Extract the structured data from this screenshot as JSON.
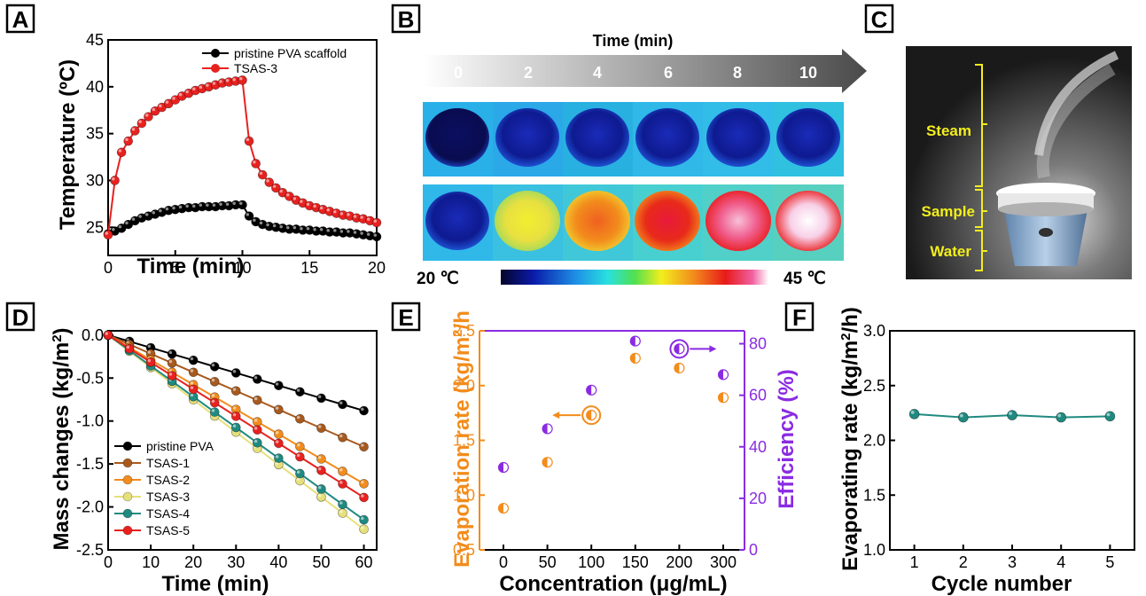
{
  "chart_data": [
    {
      "panel": "A",
      "type": "line",
      "xlabel": "Time (min)",
      "ylabel": "Temperature (ºC)",
      "xlim": [
        0,
        20
      ],
      "ylim": [
        22,
        45
      ],
      "xticks": [
        0,
        5,
        10,
        15,
        20
      ],
      "yticks": [
        25,
        30,
        35,
        40,
        45
      ],
      "legend": "top-right",
      "series": [
        {
          "name": "pristine PVA scaffold",
          "color": "#000000",
          "x": [
            0,
            0.5,
            1,
            1.5,
            2,
            2.5,
            3,
            3.5,
            4,
            4.5,
            5,
            5.5,
            6,
            6.5,
            7,
            7.5,
            8,
            8.5,
            9,
            9.5,
            10,
            10.5,
            11,
            11.5,
            12,
            12.5,
            13,
            13.5,
            14,
            14.5,
            15,
            15.5,
            16,
            16.5,
            17,
            17.5,
            18,
            18.5,
            19,
            19.5,
            20
          ],
          "y": [
            24.3,
            24.6,
            24.9,
            25.3,
            25.7,
            26,
            26.2,
            26.4,
            26.6,
            26.8,
            26.9,
            27,
            27.1,
            27.1,
            27.2,
            27.2,
            27.2,
            27.3,
            27.3,
            27.4,
            27.4,
            26.2,
            25.6,
            25.3,
            25.1,
            25,
            24.9,
            24.8,
            24.8,
            24.7,
            24.7,
            24.6,
            24.6,
            24.5,
            24.5,
            24.4,
            24.4,
            24.3,
            24.2,
            24.1,
            24
          ]
        },
        {
          "name": "TSAS-3",
          "color": "#e8211f",
          "x": [
            0,
            0.5,
            1,
            1.5,
            2,
            2.5,
            3,
            3.5,
            4,
            4.5,
            5,
            5.5,
            6,
            6.5,
            7,
            7.5,
            8,
            8.5,
            9,
            9.5,
            10,
            10.5,
            11,
            11.5,
            12,
            12.5,
            13,
            13.5,
            14,
            14.5,
            15,
            15.5,
            16,
            16.5,
            17,
            17.5,
            18,
            18.5,
            19,
            19.5,
            20
          ],
          "y": [
            24.2,
            30,
            33,
            34.2,
            35.3,
            36.1,
            36.8,
            37.4,
            37.8,
            38.2,
            38.6,
            39,
            39.3,
            39.6,
            39.8,
            40,
            40.2,
            40.4,
            40.5,
            40.6,
            40.7,
            34.2,
            31.8,
            30.6,
            29.8,
            29.2,
            28.7,
            28.3,
            27.9,
            27.6,
            27.3,
            27.1,
            26.9,
            26.7,
            26.5,
            26.3,
            26.2,
            26,
            25.9,
            25.7,
            25.5
          ]
        }
      ]
    },
    {
      "panel": "D",
      "type": "line",
      "xlabel": "Time (min)",
      "ylabel": "Mass changes (kg/m²)",
      "xlim": [
        0,
        63
      ],
      "ylim": [
        -2.5,
        0.05
      ],
      "xticks": [
        0,
        10,
        20,
        30,
        40,
        50,
        60
      ],
      "yticks": [
        0.0,
        -0.5,
        -1.0,
        -1.5,
        -2.0,
        -2.5
      ],
      "legend": "bottom-left",
      "x": [
        0,
        5,
        10,
        15,
        20,
        25,
        30,
        35,
        40,
        45,
        50,
        55,
        60
      ],
      "series": [
        {
          "name": "pristine PVA",
          "color": "#000000",
          "slope": -0.01467
        },
        {
          "name": "TSAS-1",
          "color": "#a85a1e",
          "slope": -0.02167
        },
        {
          "name": "TSAS-2",
          "color": "#f28c1c",
          "slope": -0.02883
        },
        {
          "name": "TSAS-3",
          "color": "#e6e07a",
          "slope": -0.03767
        },
        {
          "name": "TSAS-4",
          "color": "#1f8a80",
          "slope": -0.03583
        },
        {
          "name": "TSAS-5",
          "color": "#e8211f",
          "slope": -0.0315
        }
      ]
    },
    {
      "panel": "E",
      "type": "scatter",
      "xlabel": "Concentration (μg/mL)",
      "ylabel": "Evaporation rate (kg/m²/h)",
      "y2label": "Efficiency (%)",
      "categories": [
        "0",
        "50",
        "100",
        "150",
        "200",
        "300"
      ],
      "ylim": [
        0.5,
        2.5
      ],
      "yticks": [
        0.5,
        1.0,
        1.5,
        2.0,
        2.5
      ],
      "y2lim": [
        0,
        85
      ],
      "y2ticks": [
        0,
        20,
        40,
        60,
        80
      ],
      "series": [
        {
          "name": "Evaporation rate",
          "axis": "left",
          "color": "#f28c1c",
          "values": [
            0.88,
            1.3,
            1.73,
            2.25,
            2.16,
            1.89
          ]
        },
        {
          "name": "Efficiency",
          "axis": "right",
          "color": "#8a2be2",
          "values": [
            32,
            47,
            62,
            81,
            78,
            68
          ]
        }
      ]
    },
    {
      "panel": "F",
      "type": "line",
      "xlabel": "Cycle number",
      "ylabel": "Evaporating rate (kg/m²/h)",
      "xlim": [
        0.5,
        5.5
      ],
      "ylim": [
        1.0,
        3.0
      ],
      "xticks": [
        1,
        2,
        3,
        4,
        5
      ],
      "yticks": [
        1.0,
        1.5,
        2.0,
        2.5,
        3.0
      ],
      "series": [
        {
          "name": "",
          "color": "#1f8a80",
          "x": [
            1,
            2,
            3,
            4,
            5
          ],
          "y": [
            2.24,
            2.21,
            2.23,
            2.21,
            2.22
          ]
        }
      ]
    }
  ],
  "panel_labels": [
    "A",
    "B",
    "C",
    "D",
    "E",
    "F"
  ],
  "axis_text": {
    "A": {
      "xlabel": "Time (min)",
      "ylabel": "Temperature (ºC)",
      "legend": [
        "pristine PVA scaffold",
        "TSAS-3"
      ]
    },
    "D": {
      "xlabel": "Time (min)",
      "ylabel_main": "Mass changes (kg/m",
      "ylabel_sup": "2",
      "ylabel_end": ")",
      "legend": [
        "pristine PVA",
        "TSAS-1",
        "TSAS-2",
        "TSAS-3",
        "TSAS-4",
        "TSAS-5"
      ]
    },
    "E": {
      "xlabel": "Concentration (μg/mL)",
      "ylabel_main": "Evaporation rate (kg/m",
      "ylabel_sup": "2",
      "ylabel_end": "/h",
      "y2label": "Efficiency (%)"
    },
    "F": {
      "xlabel": "Cycle number",
      "ylabel_main": "Evaporating rate (kg/m",
      "ylabel_sup": "2",
      "ylabel_end": "/h)"
    }
  },
  "thermal": {
    "time_title": "Time (min)",
    "times": [
      "0",
      "2",
      "4",
      "6",
      "8",
      "10"
    ],
    "scale_min": "20 ℃",
    "scale_max": "45 ℃"
  },
  "photo": {
    "labels": [
      "Steam",
      "Sample",
      "Water"
    ]
  }
}
